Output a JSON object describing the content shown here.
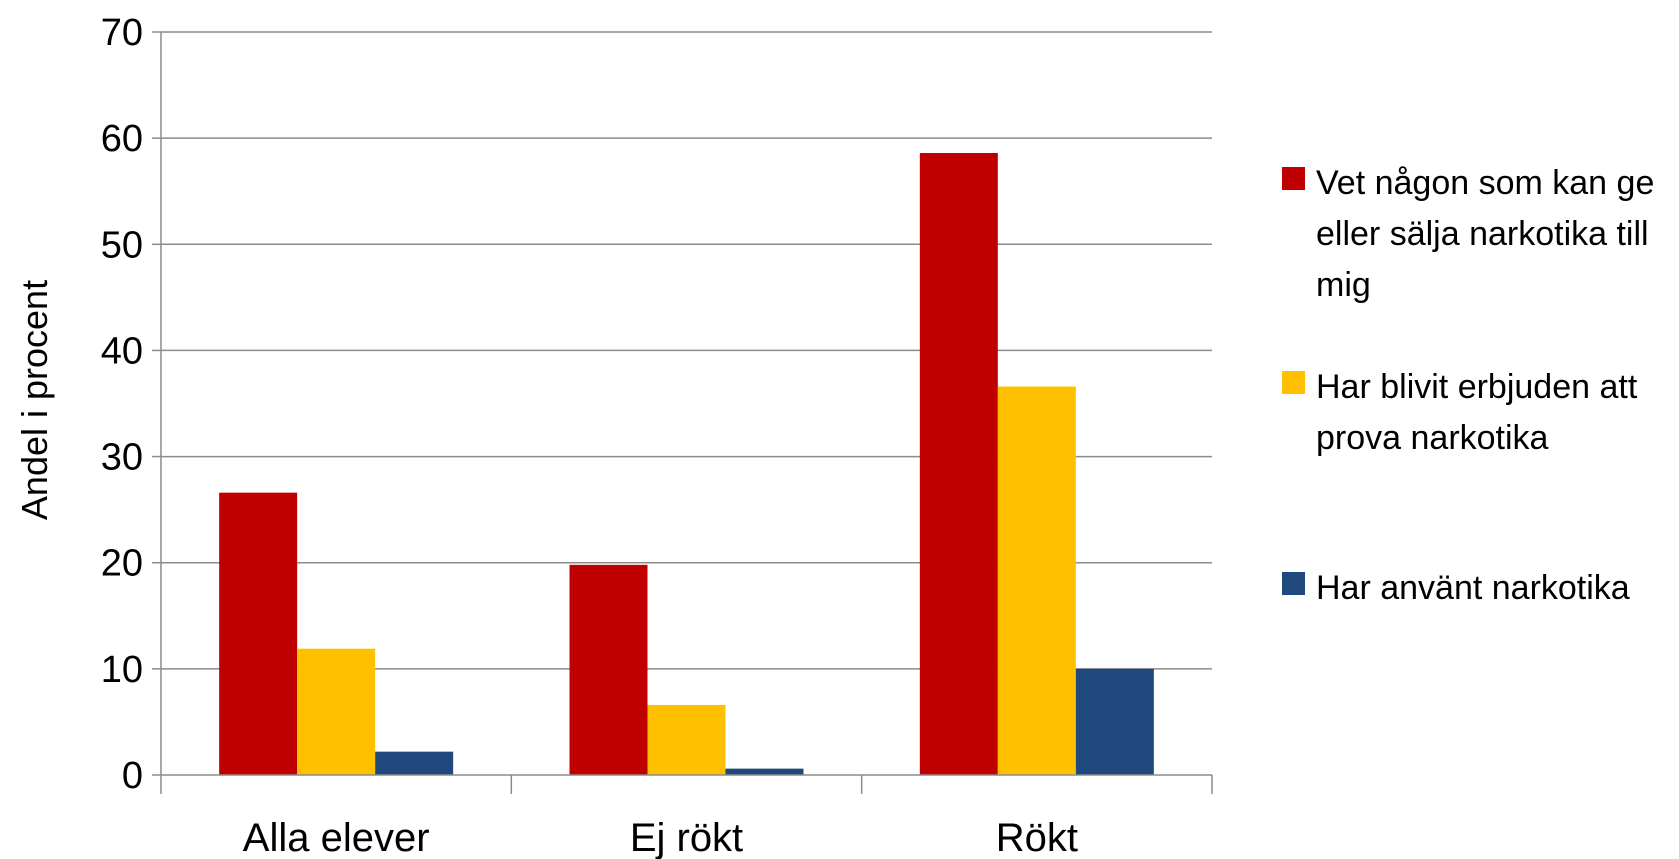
{
  "colors": {
    "series_1": "#c00000",
    "series_2": "#ffc000",
    "series_3": "#1f497d",
    "gridline": "#8c8c8c",
    "axis": "#8c8c8c"
  },
  "chart_data": {
    "type": "bar",
    "title": "",
    "xlabel": "",
    "ylabel": "Andel i procent",
    "ylim": [
      0,
      70
    ],
    "yticks": [
      0,
      10,
      20,
      30,
      40,
      50,
      60,
      70
    ],
    "grid": true,
    "legend_position": "right",
    "categories": [
      "Alla elever",
      "Ej rökt",
      "Rökt"
    ],
    "series": [
      {
        "name": "Vet någon som kan ge eller sälja narkotika till mig",
        "values": [
          26.6,
          19.8,
          58.6
        ]
      },
      {
        "name": "Har blivit erbjuden att prova narkotika",
        "values": [
          11.9,
          6.6,
          36.6
        ]
      },
      {
        "name": "Har använt narkotika",
        "values": [
          2.2,
          0.6,
          10.0
        ]
      }
    ]
  }
}
